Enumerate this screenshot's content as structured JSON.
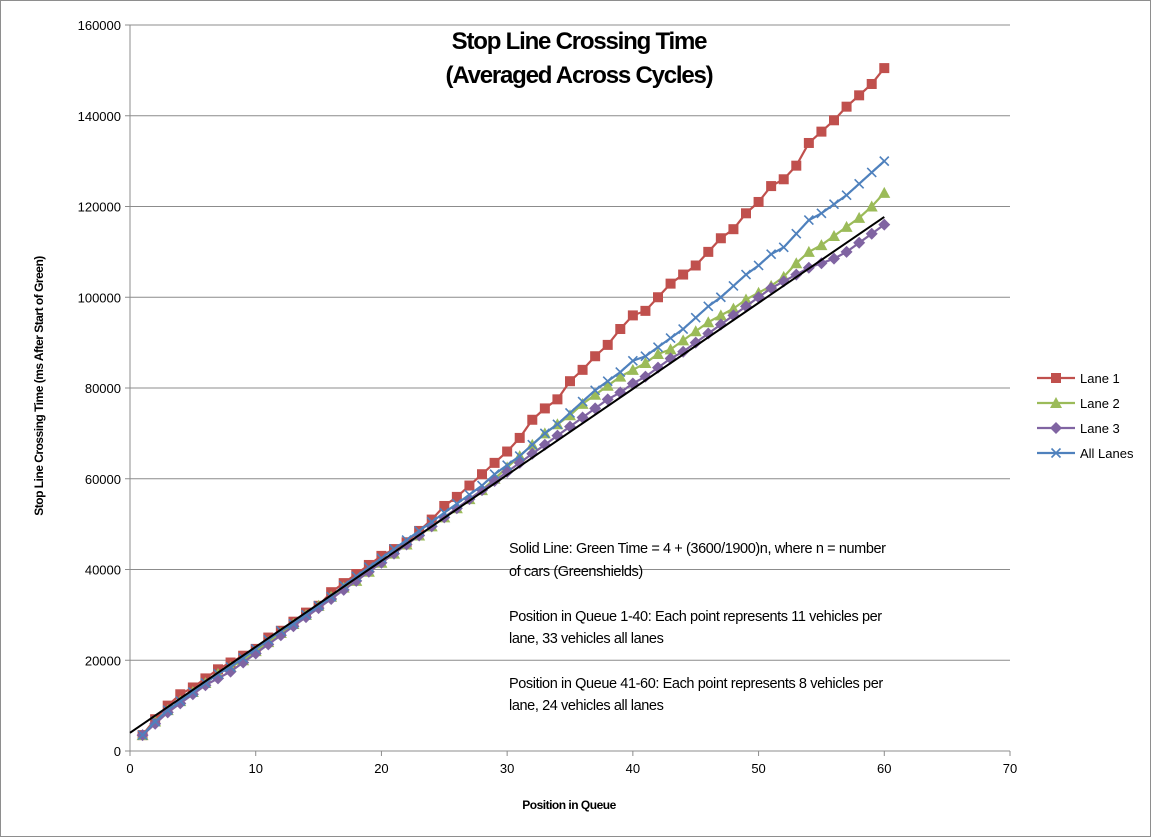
{
  "chart_data": {
    "type": "line",
    "title": [
      "Stop Line Crossing Time",
      "(Averaged Across Cycles)"
    ],
    "xlabel": "Position in Queue",
    "ylabel": "Stop Line Crossing Time (ms After Start of Green)",
    "xlim": [
      0,
      70
    ],
    "ylim": [
      0,
      160000
    ],
    "xticks": [
      0,
      10,
      20,
      30,
      40,
      50,
      60,
      70
    ],
    "yticks": [
      0,
      20000,
      40000,
      60000,
      80000,
      100000,
      120000,
      140000,
      160000
    ],
    "grid": "horizontal",
    "legend_position": "right",
    "annotations": [
      [
        "Solid Line: Green Time = 4 + (3600/1900)n,  where n = number",
        "of cars (Greenshields)"
      ],
      [
        "Position in Queue 1-40: Each point represents 11 vehicles per",
        "lane, 33 vehicles all lanes"
      ],
      [
        "Position in Queue 41-60: Each point represents 8 vehicles per",
        "lane, 24 vehicles all lanes"
      ]
    ],
    "reference_line": {
      "label": "Green Time = 4 + (3600/1900)n",
      "x": [
        0,
        60
      ],
      "y": [
        4000,
        117700
      ],
      "color": "#000000"
    },
    "x": [
      1,
      2,
      3,
      4,
      5,
      6,
      7,
      8,
      9,
      10,
      11,
      12,
      13,
      14,
      15,
      16,
      17,
      18,
      19,
      20,
      21,
      22,
      23,
      24,
      25,
      26,
      27,
      28,
      29,
      30,
      31,
      32,
      33,
      34,
      35,
      36,
      37,
      38,
      39,
      40,
      41,
      42,
      43,
      44,
      45,
      46,
      47,
      48,
      49,
      50,
      51,
      52,
      53,
      54,
      55,
      56,
      57,
      58,
      59,
      60
    ],
    "series": [
      {
        "name": "Lane 1",
        "color": "#c0504d",
        "marker": "square",
        "values": [
          3500,
          7000,
          10000,
          12500,
          14000,
          16000,
          18000,
          19500,
          21000,
          22500,
          25000,
          26500,
          28500,
          30500,
          32000,
          35000,
          37000,
          39000,
          41000,
          43000,
          44500,
          46000,
          48500,
          51000,
          54000,
          56000,
          58500,
          61000,
          63500,
          66000,
          69000,
          73000,
          75500,
          77500,
          81500,
          84000,
          87000,
          89500,
          93000,
          96000,
          97000,
          100000,
          103000,
          105000,
          107000,
          110000,
          113000,
          115000,
          118500,
          121000,
          124500,
          126000,
          129000,
          134000,
          136500,
          139000,
          142000,
          144500,
          147000,
          150500
        ]
      },
      {
        "name": "Lane 2",
        "color": "#9bbb59",
        "marker": "triangle",
        "values": [
          3500,
          6500,
          9000,
          11000,
          13000,
          15000,
          17000,
          18500,
          20000,
          22000,
          24000,
          26000,
          28000,
          30000,
          32000,
          34000,
          36000,
          37500,
          39500,
          41500,
          43500,
          45500,
          47500,
          49500,
          51500,
          53500,
          55500,
          57500,
          60000,
          62500,
          65000,
          67500,
          70000,
          72000,
          74000,
          76500,
          78500,
          80500,
          82500,
          84000,
          85500,
          87500,
          88500,
          90500,
          92500,
          94500,
          96000,
          97500,
          99500,
          101000,
          102500,
          104500,
          107500,
          110000,
          111500,
          113500,
          115500,
          117500,
          120000,
          123000
        ]
      },
      {
        "name": "Lane 3",
        "color": "#8064a2",
        "marker": "diamond",
        "values": [
          3500,
          6000,
          8500,
          10500,
          12500,
          14500,
          16000,
          17500,
          19500,
          21500,
          23500,
          25500,
          27500,
          29500,
          31500,
          33500,
          35500,
          37500,
          39500,
          41500,
          43500,
          45500,
          47500,
          49500,
          51500,
          53500,
          55500,
          57500,
          59500,
          61500,
          63500,
          65500,
          67500,
          69500,
          71500,
          73500,
          75500,
          77500,
          79000,
          81000,
          82500,
          84500,
          86500,
          88000,
          90000,
          92000,
          94000,
          96000,
          98000,
          100000,
          102000,
          103500,
          105000,
          106500,
          107500,
          108500,
          110000,
          112000,
          114000,
          116000
        ]
      },
      {
        "name": "All Lanes",
        "color": "#4f81bd",
        "marker": "x",
        "values": [
          3500,
          6500,
          9000,
          11000,
          13000,
          15000,
          17000,
          18500,
          20500,
          22500,
          24500,
          26500,
          28000,
          30000,
          32000,
          34000,
          36500,
          38500,
          40500,
          42500,
          44500,
          46500,
          48500,
          50500,
          52500,
          54500,
          56500,
          58500,
          61000,
          63000,
          65000,
          67500,
          70000,
          72000,
          74500,
          77000,
          79500,
          81500,
          83500,
          86000,
          87000,
          89000,
          91000,
          93000,
          95500,
          98000,
          100000,
          102500,
          105000,
          107000,
          109500,
          111000,
          114000,
          117000,
          118500,
          120500,
          122500,
          125000,
          127500,
          130000
        ]
      }
    ]
  }
}
